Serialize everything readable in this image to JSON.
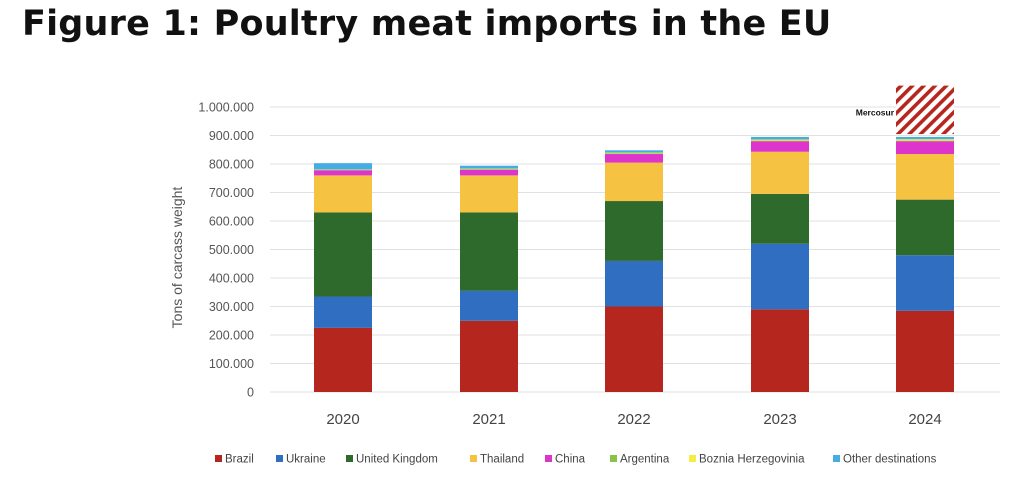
{
  "page": {
    "title": "Figure 1: Poultry meat imports in the EU"
  },
  "chart_data": {
    "type": "bar",
    "stacked": true,
    "title": "Figure 1: Poultry meat imports in the EU",
    "xlabel": "",
    "ylabel": "Tons of carcass weight",
    "ylim": [
      0,
      1000000
    ],
    "ytick_values": [
      0,
      100000,
      200000,
      300000,
      400000,
      500000,
      600000,
      700000,
      800000,
      900000,
      1000000
    ],
    "ytick_labels": [
      "0",
      "100.000",
      "200.000",
      "300.000",
      "400.000",
      "500.000",
      "600.000",
      "700.000",
      "800.000",
      "900.000",
      "1.000.000"
    ],
    "categories": [
      "2020",
      "2021",
      "2022",
      "2023",
      "2024"
    ],
    "series": [
      {
        "name": "Brazil",
        "color": "#b5271e",
        "values": [
          225000,
          250000,
          300000,
          290000,
          285000
        ]
      },
      {
        "name": "Ukraine",
        "color": "#2f6ec0",
        "values": [
          110000,
          105000,
          160000,
          230000,
          195000
        ]
      },
      {
        "name": "United Kingdom",
        "color": "#2f6a2d",
        "values": [
          295000,
          275000,
          210000,
          175000,
          195000
        ]
      },
      {
        "name": "Thailand",
        "color": "#f5c242",
        "values": [
          130000,
          130000,
          135000,
          148000,
          160000
        ]
      },
      {
        "name": "China",
        "color": "#dd35cc",
        "values": [
          18000,
          20000,
          30000,
          37000,
          45000
        ]
      },
      {
        "name": "Argentina",
        "color": "#8bc34a",
        "values": [
          2000,
          2000,
          2000,
          2000,
          2000
        ]
      },
      {
        "name": "Boznia Herzegovinia",
        "color": "#f3ee3f",
        "values": [
          1000,
          2000,
          3000,
          4000,
          5000
        ]
      },
      {
        "name": "Other destinations",
        "color": "#45ade3",
        "values": [
          22000,
          10000,
          8000,
          9000,
          8000
        ]
      }
    ],
    "annotation": {
      "label": "Mercosur",
      "category": "2024",
      "base": 905000,
      "top": 1075000,
      "color": "#b5271e",
      "pattern": "diagonal-hatch"
    },
    "grid": true,
    "legend_position": "bottom"
  }
}
